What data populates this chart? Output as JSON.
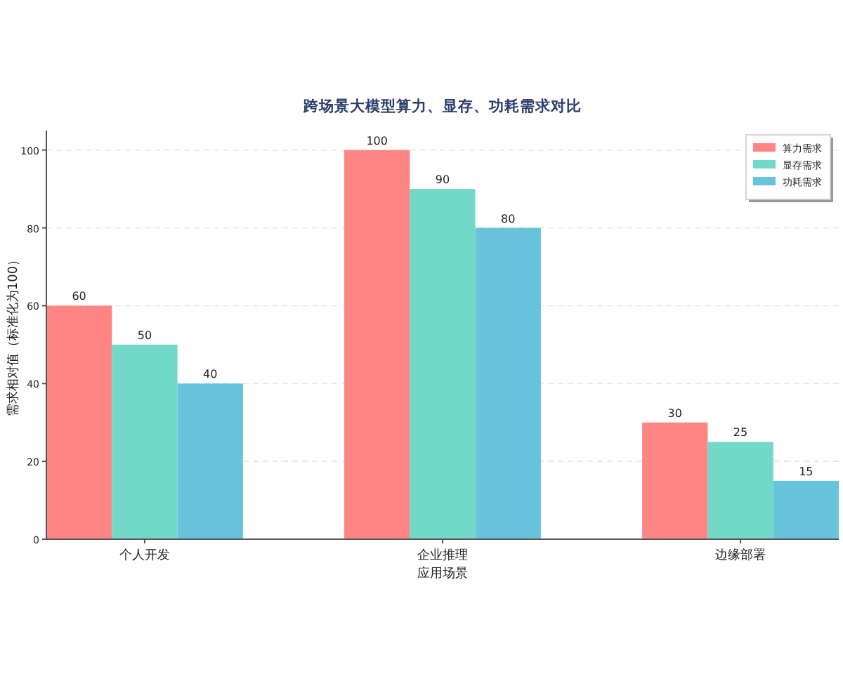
{
  "chart_data": {
    "type": "bar",
    "title": "跨场景大模型算力、显存、功耗需求对比",
    "xlabel": "应用场景",
    "ylabel": "需求相对值（标准化为100）",
    "categories": [
      "个人开发",
      "企业推理",
      "边缘部署"
    ],
    "series": [
      {
        "name": "算力需求",
        "color": "#ff8585",
        "values": [
          60,
          100,
          30
        ]
      },
      {
        "name": "显存需求",
        "color": "#72d8c8",
        "values": [
          50,
          90,
          25
        ]
      },
      {
        "name": "功耗需求",
        "color": "#68c4dc",
        "values": [
          40,
          80,
          15
        ]
      }
    ],
    "ylim": [
      0,
      105
    ],
    "yticks": [
      0,
      20,
      40,
      60,
      80,
      100
    ],
    "grid": "y",
    "legend": "top right",
    "data_labels": true
  }
}
